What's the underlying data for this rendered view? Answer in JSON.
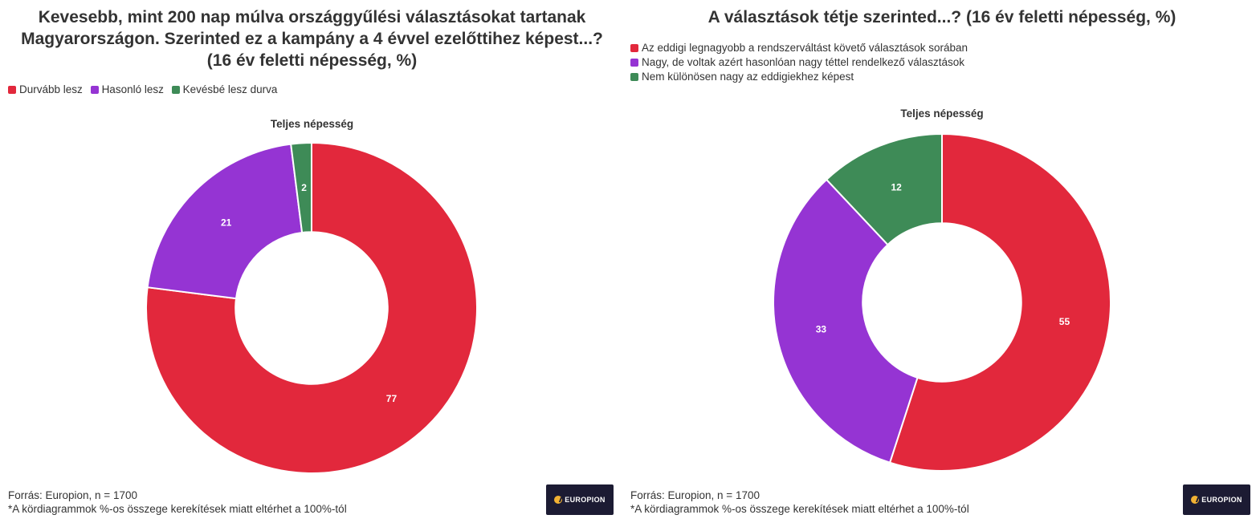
{
  "colors": {
    "red": "#e2283c",
    "purple": "#9534d3",
    "green": "#3e8b57"
  },
  "logo": {
    "text": "EUROPION"
  },
  "footer": {
    "source": "Forrás: Europion, n = 1700",
    "note": "*A kördiagrammok %-os összege kerekítések miatt eltérhet a 100%-tól"
  },
  "chart_data": [
    {
      "type": "pie",
      "title": "Kevesebb, mint 200 nap múlva országgyűlési választásokat tartanak Magyarországon. Szerinted ez a kampány a 4 évvel ezelőttihez képest...? (16 év feletti népesség, %)",
      "subtitle": "Teljes népesség",
      "legend_position": "top-left",
      "series": [
        {
          "name": "Durvább lesz",
          "value": 77,
          "color": "#e2283c"
        },
        {
          "name": "Hasonló lesz",
          "value": 21,
          "color": "#9534d3"
        },
        {
          "name": "Kevésbé lesz durva",
          "value": 2,
          "color": "#3e8b57"
        }
      ]
    },
    {
      "type": "pie",
      "title": "A választások tétje szerinted...? (16 év feletti népesség, %)",
      "subtitle": "Teljes népesség",
      "legend_position": "top-left",
      "series": [
        {
          "name": "Az eddigi legnagyobb a rendszerváltást követő választások sorában",
          "value": 55,
          "color": "#e2283c"
        },
        {
          "name": "Nagy, de voltak azért hasonlóan nagy téttel rendelkező választások",
          "value": 33,
          "color": "#9534d3"
        },
        {
          "name": "Nem különösen nagy az eddigiekhez képest",
          "value": 12,
          "color": "#3e8b57"
        }
      ]
    }
  ]
}
